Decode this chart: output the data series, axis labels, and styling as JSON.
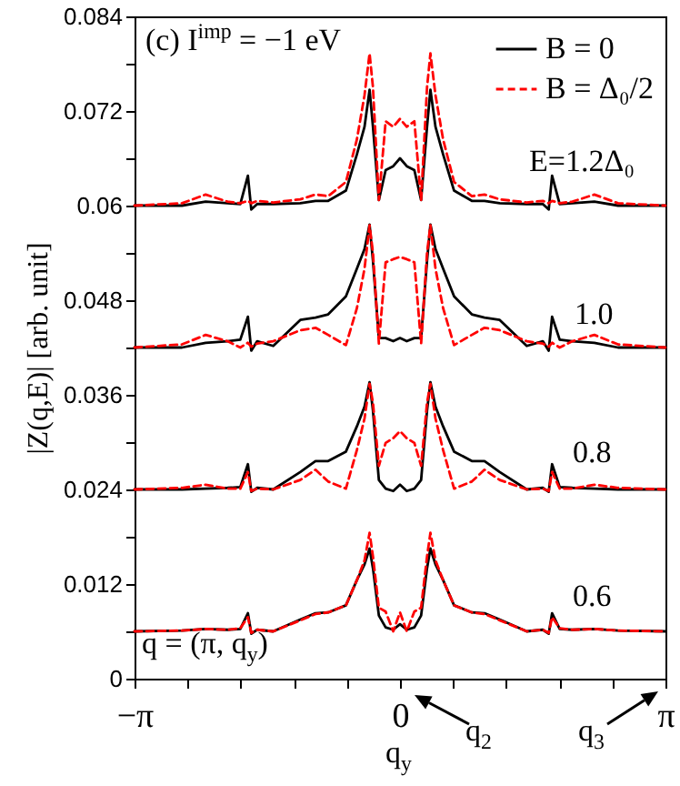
{
  "chart_data": {
    "type": "line",
    "ylabel": "|Z(q,E)| [arb. unit]",
    "xlabel": "q$_{y}$",
    "x": [
      -3.1416,
      -2.58,
      -2.3,
      -2.04,
      -1.89,
      -1.8,
      -1.76,
      -1.69,
      -1.5,
      -1.18,
      -1.0,
      -0.85,
      -0.64,
      -0.51,
      -0.42,
      -0.36,
      -0.32,
      -0.25,
      -0.17,
      -0.08,
      0,
      0.08,
      0.17,
      0.25,
      0.32,
      0.36,
      0.42,
      0.51,
      0.64,
      0.85,
      1.0,
      1.18,
      1.5,
      1.69,
      1.76,
      1.8,
      1.89,
      2.04,
      2.3,
      2.58,
      3.1416
    ],
    "series": [
      {
        "name": "B = 0",
        "color": "#000000",
        "line_style": "solid",
        "values": [
          0.06,
          0.06,
          0.0605,
          0.0603,
          0.0602,
          0.0638,
          0.0595,
          0.0602,
          0.0602,
          0.0603,
          0.0606,
          0.0606,
          0.0619,
          0.0665,
          0.07,
          0.0747,
          0.07,
          0.0607,
          0.0645,
          0.065,
          0.066,
          0.065,
          0.0645,
          0.0607,
          0.07,
          0.0747,
          0.07,
          0.0665,
          0.0619,
          0.0606,
          0.0606,
          0.0603,
          0.0602,
          0.0602,
          0.0595,
          0.0638,
          0.0602,
          0.0603,
          0.0605,
          0.06,
          0.06
        ]
      },
      {
        "name": "B = Δ₀/2",
        "color": "#ff0000",
        "line_style": "dashed",
        "values": [
          0.06,
          0.0603,
          0.0614,
          0.0605,
          0.0603,
          0.0606,
          0.0603,
          0.0606,
          0.0604,
          0.0608,
          0.0614,
          0.0612,
          0.063,
          0.0684,
          0.074,
          0.0793,
          0.075,
          0.0607,
          0.0707,
          0.07,
          0.071,
          0.07,
          0.0707,
          0.0607,
          0.075,
          0.0793,
          0.074,
          0.0684,
          0.063,
          0.0612,
          0.0614,
          0.0608,
          0.0604,
          0.0606,
          0.0603,
          0.0606,
          0.0603,
          0.0605,
          0.0614,
          0.0603,
          0.06
        ]
      },
      {
        "color": "#000000",
        "line_style": "solid",
        "values": [
          0.042,
          0.042,
          0.0426,
          0.0428,
          0.043,
          0.0459,
          0.0416,
          0.0428,
          0.0422,
          0.0455,
          0.0458,
          0.0462,
          0.0485,
          0.052,
          0.0545,
          0.0576,
          0.053,
          0.0432,
          0.0432,
          0.0428,
          0.0432,
          0.0428,
          0.0432,
          0.0432,
          0.053,
          0.0576,
          0.0545,
          0.052,
          0.0485,
          0.0462,
          0.0458,
          0.0455,
          0.0422,
          0.0428,
          0.0416,
          0.0459,
          0.043,
          0.0428,
          0.0426,
          0.042,
          0.042
        ]
      },
      {
        "color": "#ff0000",
        "line_style": "dashed",
        "values": [
          0.042,
          0.0424,
          0.0436,
          0.0428,
          0.042,
          0.0426,
          0.0421,
          0.0425,
          0.0428,
          0.0442,
          0.0445,
          0.0436,
          0.0423,
          0.047,
          0.052,
          0.0575,
          0.054,
          0.0425,
          0.0528,
          0.0532,
          0.0535,
          0.0532,
          0.0528,
          0.0425,
          0.054,
          0.0575,
          0.052,
          0.047,
          0.0423,
          0.0436,
          0.0445,
          0.0442,
          0.0428,
          0.0425,
          0.0421,
          0.0426,
          0.042,
          0.0428,
          0.0436,
          0.0424,
          0.042
        ]
      },
      {
        "color": "#000000",
        "line_style": "solid",
        "values": [
          0.024,
          0.024,
          0.0241,
          0.0242,
          0.0243,
          0.0272,
          0.0237,
          0.0242,
          0.024,
          0.0262,
          0.0276,
          0.0276,
          0.0288,
          0.032,
          0.0345,
          0.0376,
          0.034,
          0.0252,
          0.0241,
          0.0238,
          0.0246,
          0.0238,
          0.0241,
          0.0252,
          0.034,
          0.0376,
          0.0345,
          0.032,
          0.0288,
          0.0276,
          0.0276,
          0.0262,
          0.024,
          0.0242,
          0.0237,
          0.0272,
          0.0243,
          0.0242,
          0.0241,
          0.024,
          0.024
        ]
      },
      {
        "color": "#ff0000",
        "line_style": "dashed",
        "values": [
          0.024,
          0.0242,
          0.0246,
          0.0241,
          0.0241,
          0.0262,
          0.0238,
          0.0241,
          0.024,
          0.0252,
          0.0265,
          0.025,
          0.0241,
          0.029,
          0.033,
          0.0374,
          0.035,
          0.027,
          0.0299,
          0.0305,
          0.0314,
          0.0305,
          0.0299,
          0.027,
          0.035,
          0.0374,
          0.033,
          0.029,
          0.0241,
          0.025,
          0.0265,
          0.0252,
          0.024,
          0.0241,
          0.0238,
          0.0262,
          0.0241,
          0.0241,
          0.0246,
          0.0242,
          0.024
        ]
      },
      {
        "color": "#000000",
        "line_style": "solid",
        "values": [
          0.006,
          0.0061,
          0.0063,
          0.0062,
          0.0063,
          0.0083,
          0.0057,
          0.0062,
          0.006,
          0.0075,
          0.0083,
          0.0084,
          0.0093,
          0.0125,
          0.0145,
          0.0165,
          0.014,
          0.008,
          0.0065,
          0.0062,
          0.0069,
          0.0062,
          0.0065,
          0.008,
          0.014,
          0.0165,
          0.0145,
          0.0125,
          0.0093,
          0.0084,
          0.0083,
          0.0075,
          0.006,
          0.0062,
          0.0057,
          0.0083,
          0.0063,
          0.0062,
          0.0063,
          0.0061,
          0.006
        ]
      },
      {
        "color": "#ff0000",
        "line_style": "dashed",
        "values": [
          0.006,
          0.0061,
          0.0063,
          0.0062,
          0.0064,
          0.0078,
          0.0058,
          0.0062,
          0.006,
          0.0074,
          0.0082,
          0.0084,
          0.0093,
          0.0125,
          0.015,
          0.0185,
          0.0155,
          0.009,
          0.0085,
          0.006,
          0.0084,
          0.006,
          0.0085,
          0.009,
          0.0155,
          0.0185,
          0.015,
          0.0125,
          0.0093,
          0.0084,
          0.0082,
          0.0074,
          0.006,
          0.0062,
          0.0058,
          0.0078,
          0.0064,
          0.0062,
          0.0063,
          0.0061,
          0.006
        ]
      }
    ],
    "xlim": [
      -3.1416,
      3.1416
    ],
    "xticks": [
      {
        "value": -3.1416,
        "label": "−π"
      },
      {
        "value": -2.5133,
        "label": null
      },
      {
        "value": -1.885,
        "label": null
      },
      {
        "value": -1.2566,
        "label": null
      },
      {
        "value": -0.6283,
        "label": null
      },
      0,
      {
        "value": 0.6283,
        "label": null
      },
      {
        "value": 1.2566,
        "label": null
      },
      {
        "value": 1.885,
        "label": null
      },
      {
        "value": 2.5133,
        "label": null
      },
      {
        "value": 3.1416,
        "label": "π"
      }
    ],
    "ylim": [
      0,
      0.084
    ],
    "yticks": [
      0,
      {
        "value": 0.006,
        "label": null
      },
      0.012,
      {
        "value": 0.018,
        "label": null
      },
      0.024,
      {
        "value": 0.03,
        "label": null
      },
      0.036,
      {
        "value": 0.042,
        "label": null
      },
      0.048,
      {
        "value": 0.054,
        "label": null
      },
      0.06,
      {
        "value": 0.066,
        "label": null
      },
      0.072,
      {
        "value": 0.078,
        "label": null
      },
      0.084
    ],
    "legend": "top right",
    "annotations": [
      "(c) I$^{imp}$ = −1 eV",
      "q = (π, q$_{y}$)",
      "q$_{2}$",
      "q$_{3}$",
      "E=1.2Δ₀",
      "1.0",
      "0.8",
      "0.6"
    ]
  }
}
